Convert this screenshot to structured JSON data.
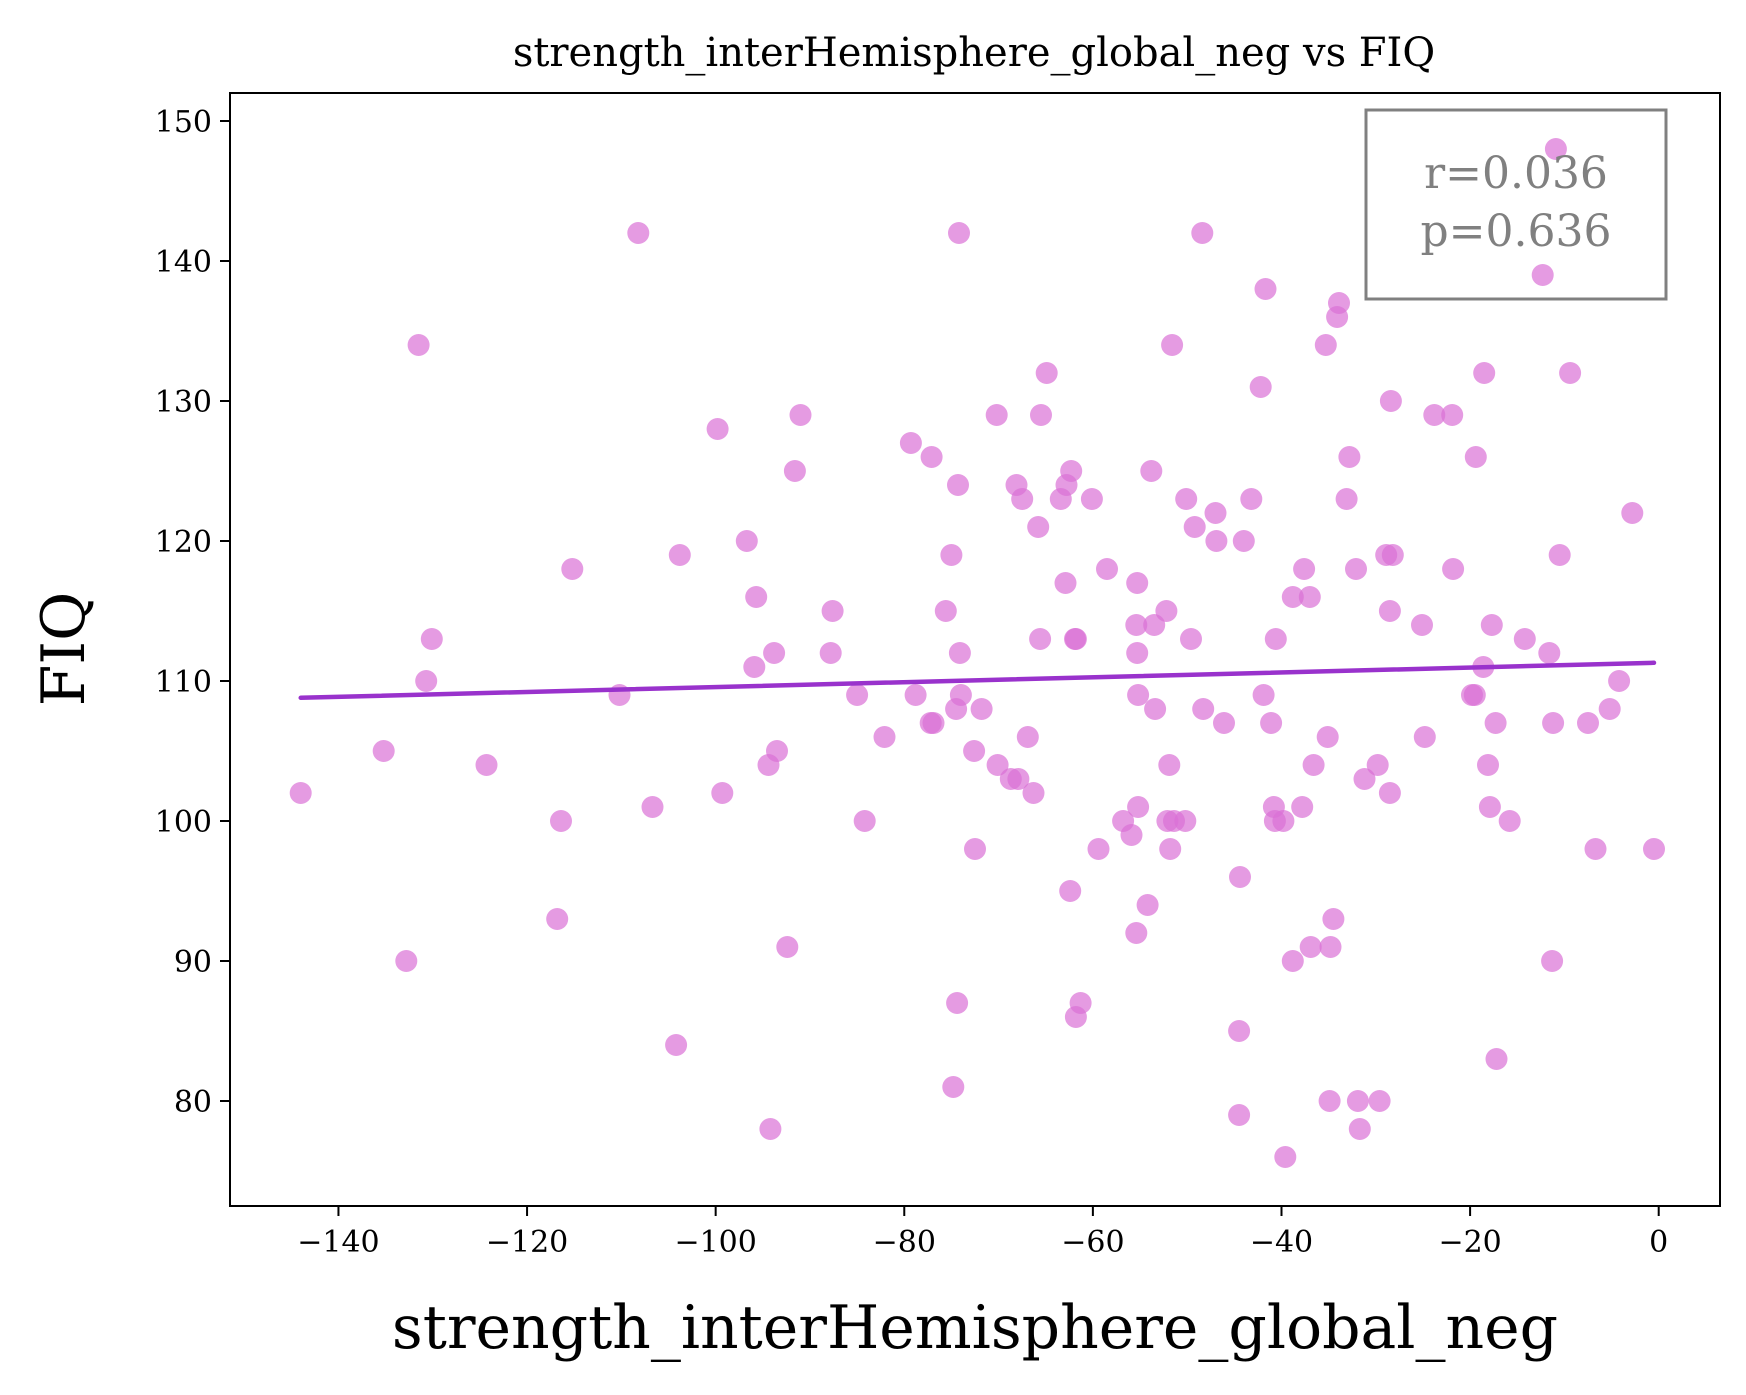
{
  "chart_data": {
    "type": "scatter",
    "title": "strength_interHemisphere_global_neg vs FIQ",
    "xlabel": "strength_interHemisphere_global_neg",
    "ylabel": "FIQ",
    "xlim": [
      -151.5,
      6.5
    ],
    "ylim": [
      72.5,
      152
    ],
    "xticks": [
      -140,
      -120,
      -100,
      -80,
      -60,
      -40,
      -20,
      0
    ],
    "yticks": [
      80,
      90,
      100,
      110,
      120,
      130,
      140,
      150
    ],
    "xtick_labels": [
      "−140",
      "−120",
      "−100",
      "−80",
      "−60",
      "−40",
      "−20",
      "0"
    ],
    "ytick_labels": [
      "80",
      "90",
      "100",
      "110",
      "120",
      "130",
      "140",
      "150"
    ],
    "grid": false,
    "point_color": "#da70d6",
    "line_color": "#9932cc",
    "regression_line": {
      "x": [
        -144.0,
        -0.5
      ],
      "y": [
        108.8,
        111.3
      ]
    },
    "annotation": {
      "lines": [
        "r=0.036",
        "p=0.636"
      ],
      "position": "top-right"
    },
    "points": [
      [
        -144.0,
        102
      ],
      [
        -135.2,
        105
      ],
      [
        -132.8,
        90
      ],
      [
        -131.5,
        134
      ],
      [
        -130.7,
        110
      ],
      [
        -130.1,
        113
      ],
      [
        -124.3,
        104
      ],
      [
        -116.8,
        93
      ],
      [
        -116.4,
        100
      ],
      [
        -115.2,
        118
      ],
      [
        -110.2,
        109
      ],
      [
        -108.2,
        142
      ],
      [
        -106.7,
        101
      ],
      [
        -104.2,
        84
      ],
      [
        -103.8,
        119
      ],
      [
        -99.8,
        128
      ],
      [
        -99.3,
        102
      ],
      [
        -96.7,
        120
      ],
      [
        -95.9,
        111
      ],
      [
        -95.7,
        116
      ],
      [
        -94.4,
        104
      ],
      [
        -94.2,
        78
      ],
      [
        -93.8,
        112
      ],
      [
        -93.5,
        105
      ],
      [
        -92.4,
        91
      ],
      [
        -91.6,
        125
      ],
      [
        -91.0,
        129
      ],
      [
        -87.8,
        112
      ],
      [
        -87.6,
        115
      ],
      [
        -85.0,
        109
      ],
      [
        -84.2,
        100
      ],
      [
        -82.1,
        106
      ],
      [
        -79.3,
        127
      ],
      [
        -78.8,
        109
      ],
      [
        -77.2,
        107
      ],
      [
        -77.1,
        126
      ],
      [
        -76.9,
        107
      ],
      [
        -75.6,
        115
      ],
      [
        -75.0,
        119
      ],
      [
        -74.8,
        81
      ],
      [
        -74.5,
        108
      ],
      [
        -74.4,
        87
      ],
      [
        -74.3,
        124
      ],
      [
        -74.2,
        142
      ],
      [
        -74.1,
        112
      ],
      [
        -74.0,
        109
      ],
      [
        -72.6,
        105
      ],
      [
        -72.5,
        98
      ],
      [
        -71.8,
        108
      ],
      [
        -70.2,
        129
      ],
      [
        -70.1,
        104
      ],
      [
        -68.7,
        103
      ],
      [
        -68.1,
        124
      ],
      [
        -67.9,
        103
      ],
      [
        -67.5,
        123
      ],
      [
        -66.9,
        106
      ],
      [
        -66.3,
        102
      ],
      [
        -65.8,
        121
      ],
      [
        -65.6,
        113
      ],
      [
        -65.5,
        129
      ],
      [
        -64.9,
        132
      ],
      [
        -63.4,
        123
      ],
      [
        -62.9,
        117
      ],
      [
        -62.8,
        124
      ],
      [
        -62.4,
        95
      ],
      [
        -62.3,
        125
      ],
      [
        -61.9,
        113
      ],
      [
        -61.8,
        113
      ],
      [
        -61.8,
        86
      ],
      [
        -61.3,
        87
      ],
      [
        -60.1,
        123
      ],
      [
        -59.4,
        98
      ],
      [
        -58.5,
        118
      ],
      [
        -56.8,
        100
      ],
      [
        -55.9,
        99
      ],
      [
        -55.4,
        92
      ],
      [
        -55.4,
        114
      ],
      [
        -55.3,
        112
      ],
      [
        -55.3,
        117
      ],
      [
        -55.2,
        101
      ],
      [
        -55.2,
        109
      ],
      [
        -54.2,
        94
      ],
      [
        -53.8,
        125
      ],
      [
        -53.5,
        114
      ],
      [
        -53.4,
        108
      ],
      [
        -52.2,
        115
      ],
      [
        -52.1,
        100
      ],
      [
        -51.9,
        104
      ],
      [
        -51.8,
        98
      ],
      [
        -51.6,
        134
      ],
      [
        -51.4,
        100
      ],
      [
        -50.2,
        100
      ],
      [
        -50.1,
        123
      ],
      [
        -49.6,
        113
      ],
      [
        -49.2,
        121
      ],
      [
        -48.4,
        142
      ],
      [
        -48.3,
        108
      ],
      [
        -47.0,
        122
      ],
      [
        -46.9,
        120
      ],
      [
        -46.1,
        107
      ],
      [
        -44.5,
        79
      ],
      [
        -44.5,
        85
      ],
      [
        -44.4,
        96
      ],
      [
        -44.0,
        120
      ],
      [
        -43.2,
        123
      ],
      [
        -42.2,
        131
      ],
      [
        -41.9,
        109
      ],
      [
        -41.7,
        138
      ],
      [
        -41.1,
        107
      ],
      [
        -40.8,
        101
      ],
      [
        -40.7,
        100
      ],
      [
        -40.6,
        113
      ],
      [
        -39.8,
        100
      ],
      [
        -39.6,
        76
      ],
      [
        -38.8,
        116
      ],
      [
        -38.8,
        90
      ],
      [
        -37.8,
        101
      ],
      [
        -37.6,
        118
      ],
      [
        -37.0,
        116
      ],
      [
        -36.9,
        91
      ],
      [
        -36.6,
        104
      ],
      [
        -35.3,
        134
      ],
      [
        -35.1,
        106
      ],
      [
        -34.9,
        80
      ],
      [
        -34.8,
        91
      ],
      [
        -34.5,
        93
      ],
      [
        -34.1,
        136
      ],
      [
        -33.9,
        137
      ],
      [
        -33.1,
        123
      ],
      [
        -32.8,
        126
      ],
      [
        -32.1,
        118
      ],
      [
        -31.9,
        80
      ],
      [
        -31.7,
        78
      ],
      [
        -31.2,
        103
      ],
      [
        -29.8,
        104
      ],
      [
        -29.6,
        80
      ],
      [
        -28.9,
        119
      ],
      [
        -28.5,
        102
      ],
      [
        -28.5,
        115
      ],
      [
        -28.4,
        130
      ],
      [
        -28.2,
        119
      ],
      [
        -25.1,
        114
      ],
      [
        -24.8,
        106
      ],
      [
        -23.8,
        129
      ],
      [
        -21.9,
        129
      ],
      [
        -21.8,
        118
      ],
      [
        -19.8,
        109
      ],
      [
        -19.5,
        109
      ],
      [
        -19.4,
        126
      ],
      [
        -18.6,
        111
      ],
      [
        -18.5,
        132
      ],
      [
        -18.1,
        104
      ],
      [
        -17.9,
        101
      ],
      [
        -17.7,
        114
      ],
      [
        -17.3,
        107
      ],
      [
        -17.2,
        83
      ],
      [
        -15.8,
        100
      ],
      [
        -14.2,
        113
      ],
      [
        -12.3,
        139
      ],
      [
        -11.6,
        112
      ],
      [
        -11.3,
        90
      ],
      [
        -11.2,
        107
      ],
      [
        -10.9,
        148
      ],
      [
        -10.5,
        119
      ],
      [
        -9.4,
        132
      ],
      [
        -7.5,
        107
      ],
      [
        -6.7,
        98
      ],
      [
        -5.2,
        108
      ],
      [
        -4.2,
        110
      ],
      [
        -2.8,
        122
      ],
      [
        -0.5,
        98
      ]
    ]
  }
}
